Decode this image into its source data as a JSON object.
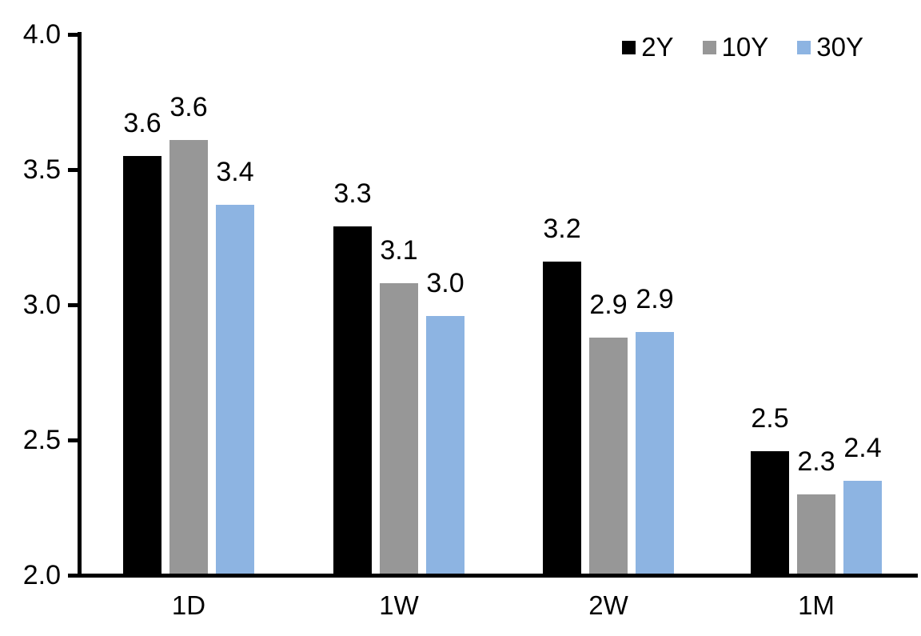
{
  "chart_data": {
    "type": "bar",
    "title": "",
    "xlabel": "",
    "ylabel": "",
    "categories": [
      "1D",
      "1W",
      "2W",
      "1M"
    ],
    "series": [
      {
        "name": "2Y",
        "color": "#000000",
        "values": [
          3.55,
          3.29,
          3.16,
          2.46
        ],
        "labels": [
          "3.6",
          "3.3",
          "3.2",
          "2.5"
        ]
      },
      {
        "name": "10Y",
        "color": "#979797",
        "values": [
          3.61,
          3.08,
          2.88,
          2.3
        ],
        "labels": [
          "3.6",
          "3.1",
          "2.9",
          "2.3"
        ]
      },
      {
        "name": "30Y",
        "color": "#8DB4E2",
        "values": [
          3.37,
          2.96,
          2.9,
          2.35
        ],
        "labels": [
          "3.4",
          "3.0",
          "2.9",
          "2.4"
        ]
      }
    ],
    "ylim": [
      2.0,
      4.0
    ],
    "yticks": [
      4.0,
      3.5,
      3.0,
      2.5,
      2.0
    ],
    "ytick_labels": [
      "4.0",
      "3.5",
      "3.0",
      "2.5",
      "2.0"
    ],
    "grid": false,
    "legend_position": "top-right",
    "axis_color": "#000000",
    "text_color": "#000000",
    "background_color": "#FFFFFF"
  }
}
